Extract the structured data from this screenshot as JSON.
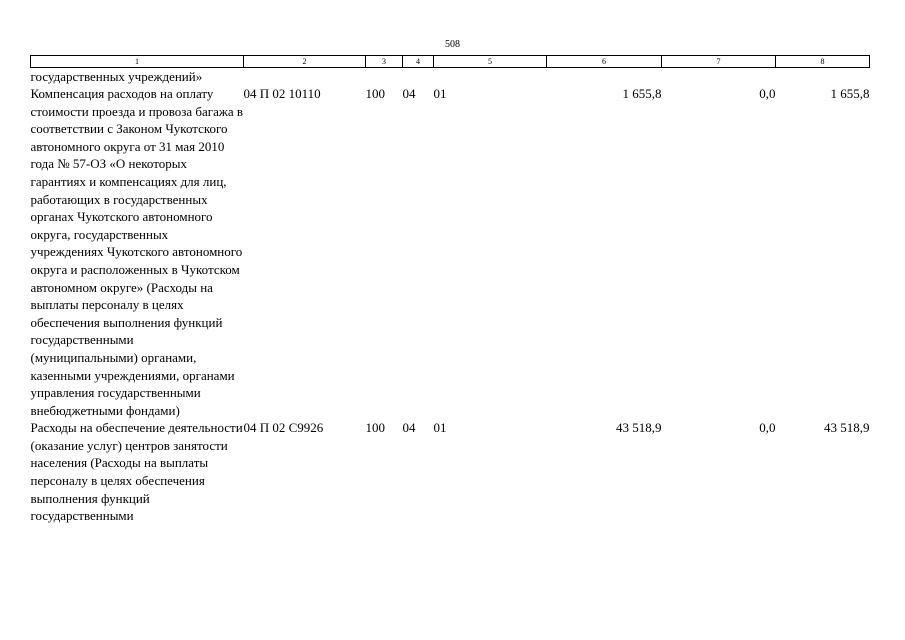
{
  "page_number": "508",
  "header": {
    "columns": [
      "1",
      "2",
      "3",
      "4",
      "5",
      "6",
      "7",
      "8"
    ]
  },
  "rows": [
    {
      "name": "государственных учреждений»",
      "code": "",
      "vr": "",
      "rz": "",
      "pr": "",
      "col6": "",
      "col7": "",
      "col8": ""
    },
    {
      "name": "Компенсация расходов на оплату стоимости проезда и провоза багажа в соответствии с Законом Чукотского автономного округа от 31 мая 2010 года № 57-ОЗ «О некоторых гарантиях и компенсациях для лиц, работающих в государственных органах Чукотского автономного округа, государственных учреждениях Чукотского автономного округа и расположенных в Чукотском автономном округе» (Расходы на выплаты персоналу в целях обеспечения выполнения функций государственными (муниципальными) органами, казенными учреждениями, органами управления государственными внебюджетными фондами)",
      "code": "04 П 02 10110",
      "vr": "100",
      "rz": "04",
      "pr": "01",
      "col6": "1 655,8",
      "col7": "0,0",
      "col8": "1 655,8"
    },
    {
      "name": "Расходы на обеспечение деятельности (оказание услуг) центров занятости населения (Расходы на выплаты персоналу в целях обеспечения выполнения функций государственными",
      "code": "04 П 02 С9926",
      "vr": "100",
      "rz": "04",
      "pr": "01",
      "col6": "43 518,9",
      "col7": "0,0",
      "col8": "43 518,9"
    }
  ]
}
